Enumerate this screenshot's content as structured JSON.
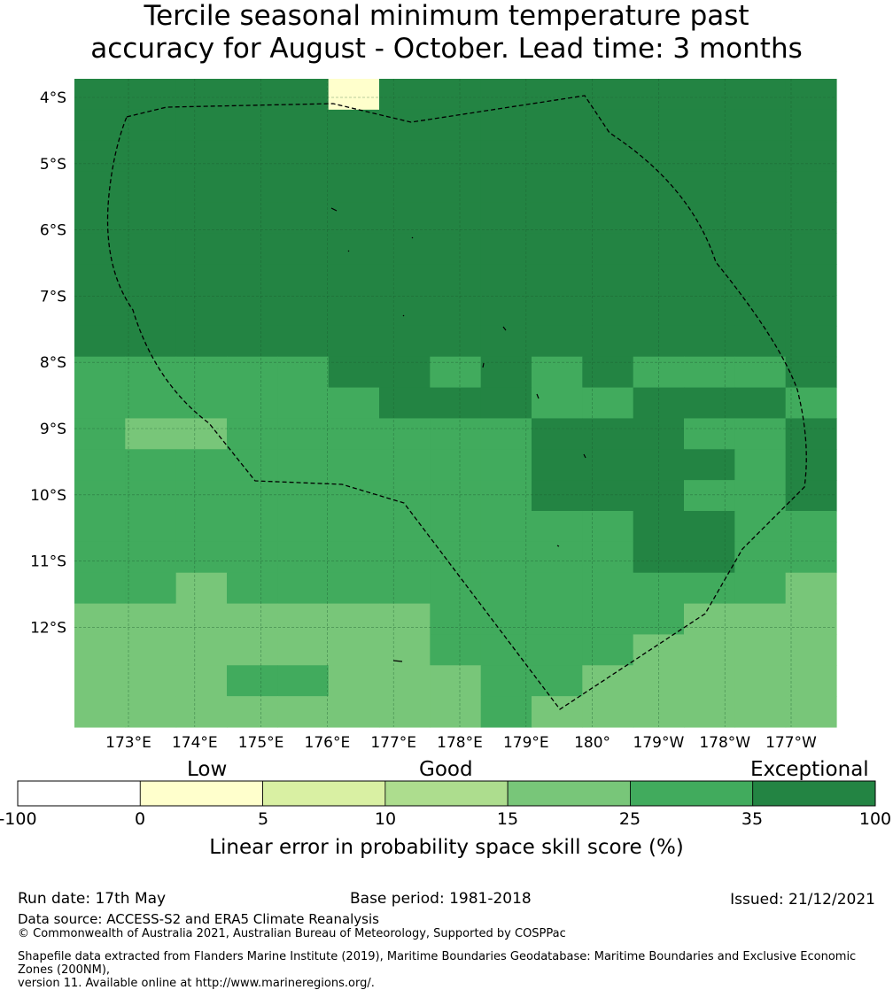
{
  "title_line1": "Tercile seasonal minimum temperature past",
  "title_line2": "accuracy for August - October. Lead time: 3 months",
  "map": {
    "lon_labels": [
      "173°E",
      "174°E",
      "175°E",
      "176°E",
      "177°E",
      "178°E",
      "179°E",
      "180°",
      "179°W",
      "178°W",
      "177°W"
    ],
    "lat_labels": [
      "4°S",
      "5°S",
      "6°S",
      "7°S",
      "8°S",
      "9°S",
      "10°S",
      "11°S",
      "12°S"
    ],
    "category_colors": [
      "#ffffff",
      "#ffffcc",
      "#d9f0a3",
      "#addd8e",
      "#78c679",
      "#41ab5d",
      "#238443"
    ],
    "grid_rows": [
      "666661666666666",
      "666666666666666",
      "666666666666666",
      "666666666666666",
      "666666666666666",
      "666666666666666",
      "666666666666666",
      "666666666666666",
      "666666666666666",
      "555556656565556",
      "555555666556665",
      "544555555666556",
      "555555555666656",
      "555555555666556",
      "555555555556655",
      "555555555556655",
      "554555555555554",
      "444444455555444",
      "444444455554444",
      "444554445544444",
      "444444445444444"
    ]
  },
  "colorbar": {
    "category_labels": [
      "Low",
      "Good",
      "Exceptional"
    ],
    "ticks": [
      "-100",
      "0",
      "5",
      "10",
      "15",
      "25",
      "35",
      "100"
    ],
    "colors": [
      "#ffffff",
      "#ffffcc",
      "#d9f0a3",
      "#addd8e",
      "#78c679",
      "#41ab5d",
      "#238443"
    ],
    "axis_label": "Linear error in probability space skill score (%)"
  },
  "footer": {
    "run_date": "Run date: 17th May",
    "base_period": "Base period: 1981-2018",
    "issued": "Issued: 21/12/2021",
    "data_source": "Data source: ACCESS-S2 and ERA5 Climate Reanalysis",
    "copyright": "© Commonwealth of Australia 2021, Australian Bureau of Meteorology, Supported by COSPPac",
    "shapefile_line1": "Shapefile data extracted from Flanders Marine Institute (2019), Maritime Boundaries Geodatabase: Maritime Boundaries and Exclusive Economic Zones (200NM),",
    "shapefile_line2": "version 11. Available online at http://www.marineregions.org/."
  }
}
